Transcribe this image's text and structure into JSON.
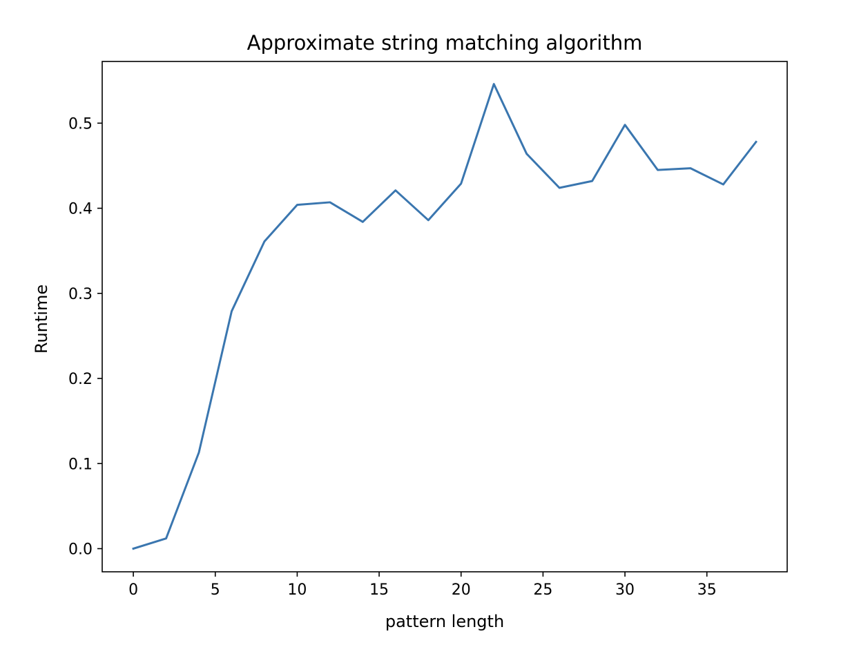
{
  "chart_data": {
    "type": "line",
    "title": "Approximate string matching algorithm",
    "xlabel": "pattern length",
    "ylabel": "Runtime",
    "xlim": [
      -1.9,
      39.9
    ],
    "ylim": [
      -0.0272,
      0.5725
    ],
    "x_ticks": [
      0,
      5,
      10,
      15,
      20,
      25,
      30,
      35
    ],
    "y_ticks": [
      0.0,
      0.1,
      0.2,
      0.3,
      0.4,
      0.5
    ],
    "x_tick_labels": [
      "0",
      "5",
      "10",
      "15",
      "20",
      "25",
      "30",
      "35"
    ],
    "y_tick_labels": [
      "0.0",
      "0.1",
      "0.2",
      "0.3",
      "0.4",
      "0.5"
    ],
    "grid": false,
    "series": [
      {
        "color": "#3a76af",
        "x": [
          0,
          2,
          4,
          6,
          8,
          10,
          12,
          14,
          16,
          18,
          20,
          22,
          24,
          26,
          28,
          30,
          32,
          34,
          36,
          38
        ],
        "y": [
          0.0,
          0.012,
          0.113,
          0.279,
          0.361,
          0.404,
          0.407,
          0.384,
          0.421,
          0.386,
          0.429,
          0.546,
          0.464,
          0.424,
          0.432,
          0.498,
          0.445,
          0.447,
          0.428,
          0.478
        ]
      }
    ]
  }
}
